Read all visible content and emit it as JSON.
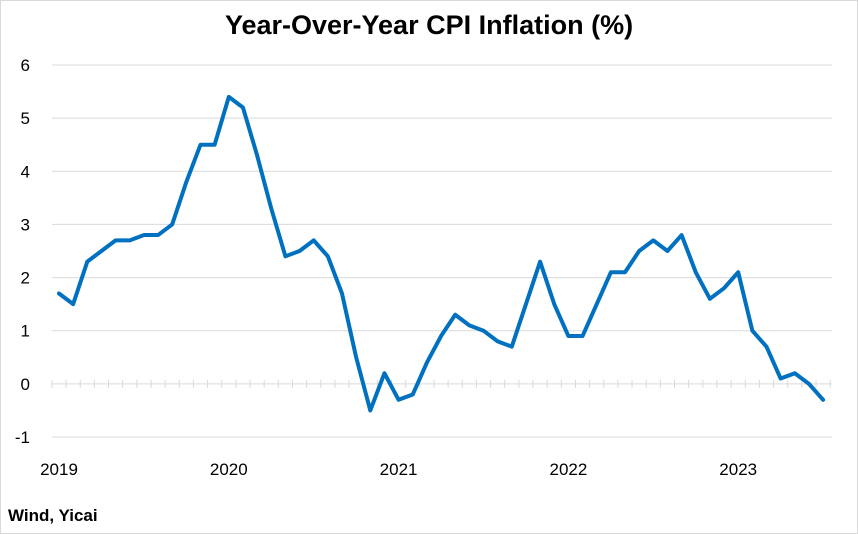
{
  "chart_data": {
    "type": "line",
    "title": "Year-Over-Year CPI Inflation (%)",
    "xlabel": "",
    "ylabel": "",
    "ylim": [
      -1,
      6
    ],
    "yticks": [
      "-1",
      "0",
      "1",
      "2",
      "3",
      "4",
      "5",
      "6"
    ],
    "xticks": [
      "2019",
      "2020",
      "2021",
      "2022",
      "2023"
    ],
    "grid": true,
    "legend": "none",
    "source": "Wind, Yicai",
    "colors": {
      "line": "#0070c0",
      "grid": "#d9d9d9"
    },
    "series": [
      {
        "x": [
          "2019-01",
          "2019-02",
          "2019-03",
          "2019-04",
          "2019-05",
          "2019-06",
          "2019-07",
          "2019-08",
          "2019-09",
          "2019-10",
          "2019-11",
          "2019-12",
          "2020-01",
          "2020-02",
          "2020-03",
          "2020-04",
          "2020-05",
          "2020-06",
          "2020-07",
          "2020-08",
          "2020-09",
          "2020-10",
          "2020-11",
          "2020-12",
          "2021-01",
          "2021-02",
          "2021-03",
          "2021-04",
          "2021-05",
          "2021-06",
          "2021-07",
          "2021-08",
          "2021-09",
          "2021-10",
          "2021-11",
          "2021-12",
          "2022-01",
          "2022-02",
          "2022-03",
          "2022-04",
          "2022-05",
          "2022-06",
          "2022-07",
          "2022-08",
          "2022-09",
          "2022-10",
          "2022-11",
          "2022-12",
          "2023-01",
          "2023-02",
          "2023-03",
          "2023-04",
          "2023-05",
          "2023-06",
          "2023-07"
        ],
        "values": [
          1.7,
          1.5,
          2.3,
          2.5,
          2.7,
          2.7,
          2.8,
          2.8,
          3.0,
          3.8,
          4.5,
          4.5,
          5.4,
          5.2,
          4.3,
          3.3,
          2.4,
          2.5,
          2.7,
          2.4,
          1.7,
          0.5,
          -0.5,
          0.2,
          -0.3,
          -0.2,
          0.4,
          0.9,
          1.3,
          1.1,
          1.0,
          0.8,
          0.7,
          1.5,
          2.3,
          1.5,
          0.9,
          0.9,
          1.5,
          2.1,
          2.1,
          2.5,
          2.7,
          2.5,
          2.8,
          2.1,
          1.6,
          1.8,
          2.1,
          1.0,
          0.7,
          0.1,
          0.2,
          0.0,
          -0.3
        ]
      }
    ]
  }
}
